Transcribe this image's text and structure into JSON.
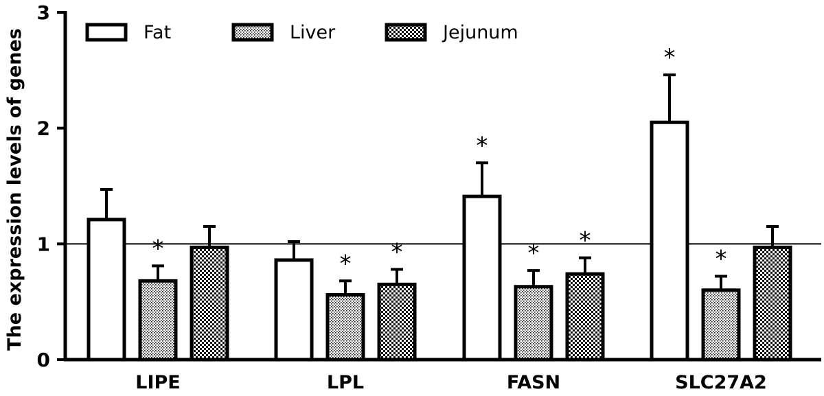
{
  "chart_data": {
    "type": "bar",
    "title": "",
    "xlabel": "",
    "ylabel": "The expression levels of genes",
    "ylim": [
      0,
      3
    ],
    "yticks": [
      "0",
      "1",
      "2",
      "3"
    ],
    "categories": [
      "LIPE",
      "LPL",
      "FASN",
      "SLC27A2"
    ],
    "series": [
      {
        "name": "Fat",
        "pattern": "none",
        "values": [
          1.21,
          0.86,
          1.41,
          2.05
        ],
        "errors": [
          0.26,
          0.16,
          0.29,
          0.41
        ],
        "significant": [
          false,
          false,
          true,
          true
        ]
      },
      {
        "name": "Liver",
        "pattern": "dots",
        "values": [
          0.68,
          0.56,
          0.63,
          0.6
        ],
        "errors": [
          0.13,
          0.12,
          0.14,
          0.12
        ],
        "significant": [
          true,
          true,
          true,
          true
        ]
      },
      {
        "name": "Jejunum",
        "pattern": "checker",
        "values": [
          0.97,
          0.65,
          0.74,
          0.97
        ],
        "errors": [
          0.18,
          0.13,
          0.14,
          0.18
        ],
        "significant": [
          false,
          true,
          true,
          false
        ]
      }
    ],
    "reference_line": 1,
    "significance_marker": "*",
    "legend_position": "top-left",
    "grid": false,
    "colors": {
      "bar_fill": "#ffffff",
      "stroke": "#000000"
    }
  }
}
